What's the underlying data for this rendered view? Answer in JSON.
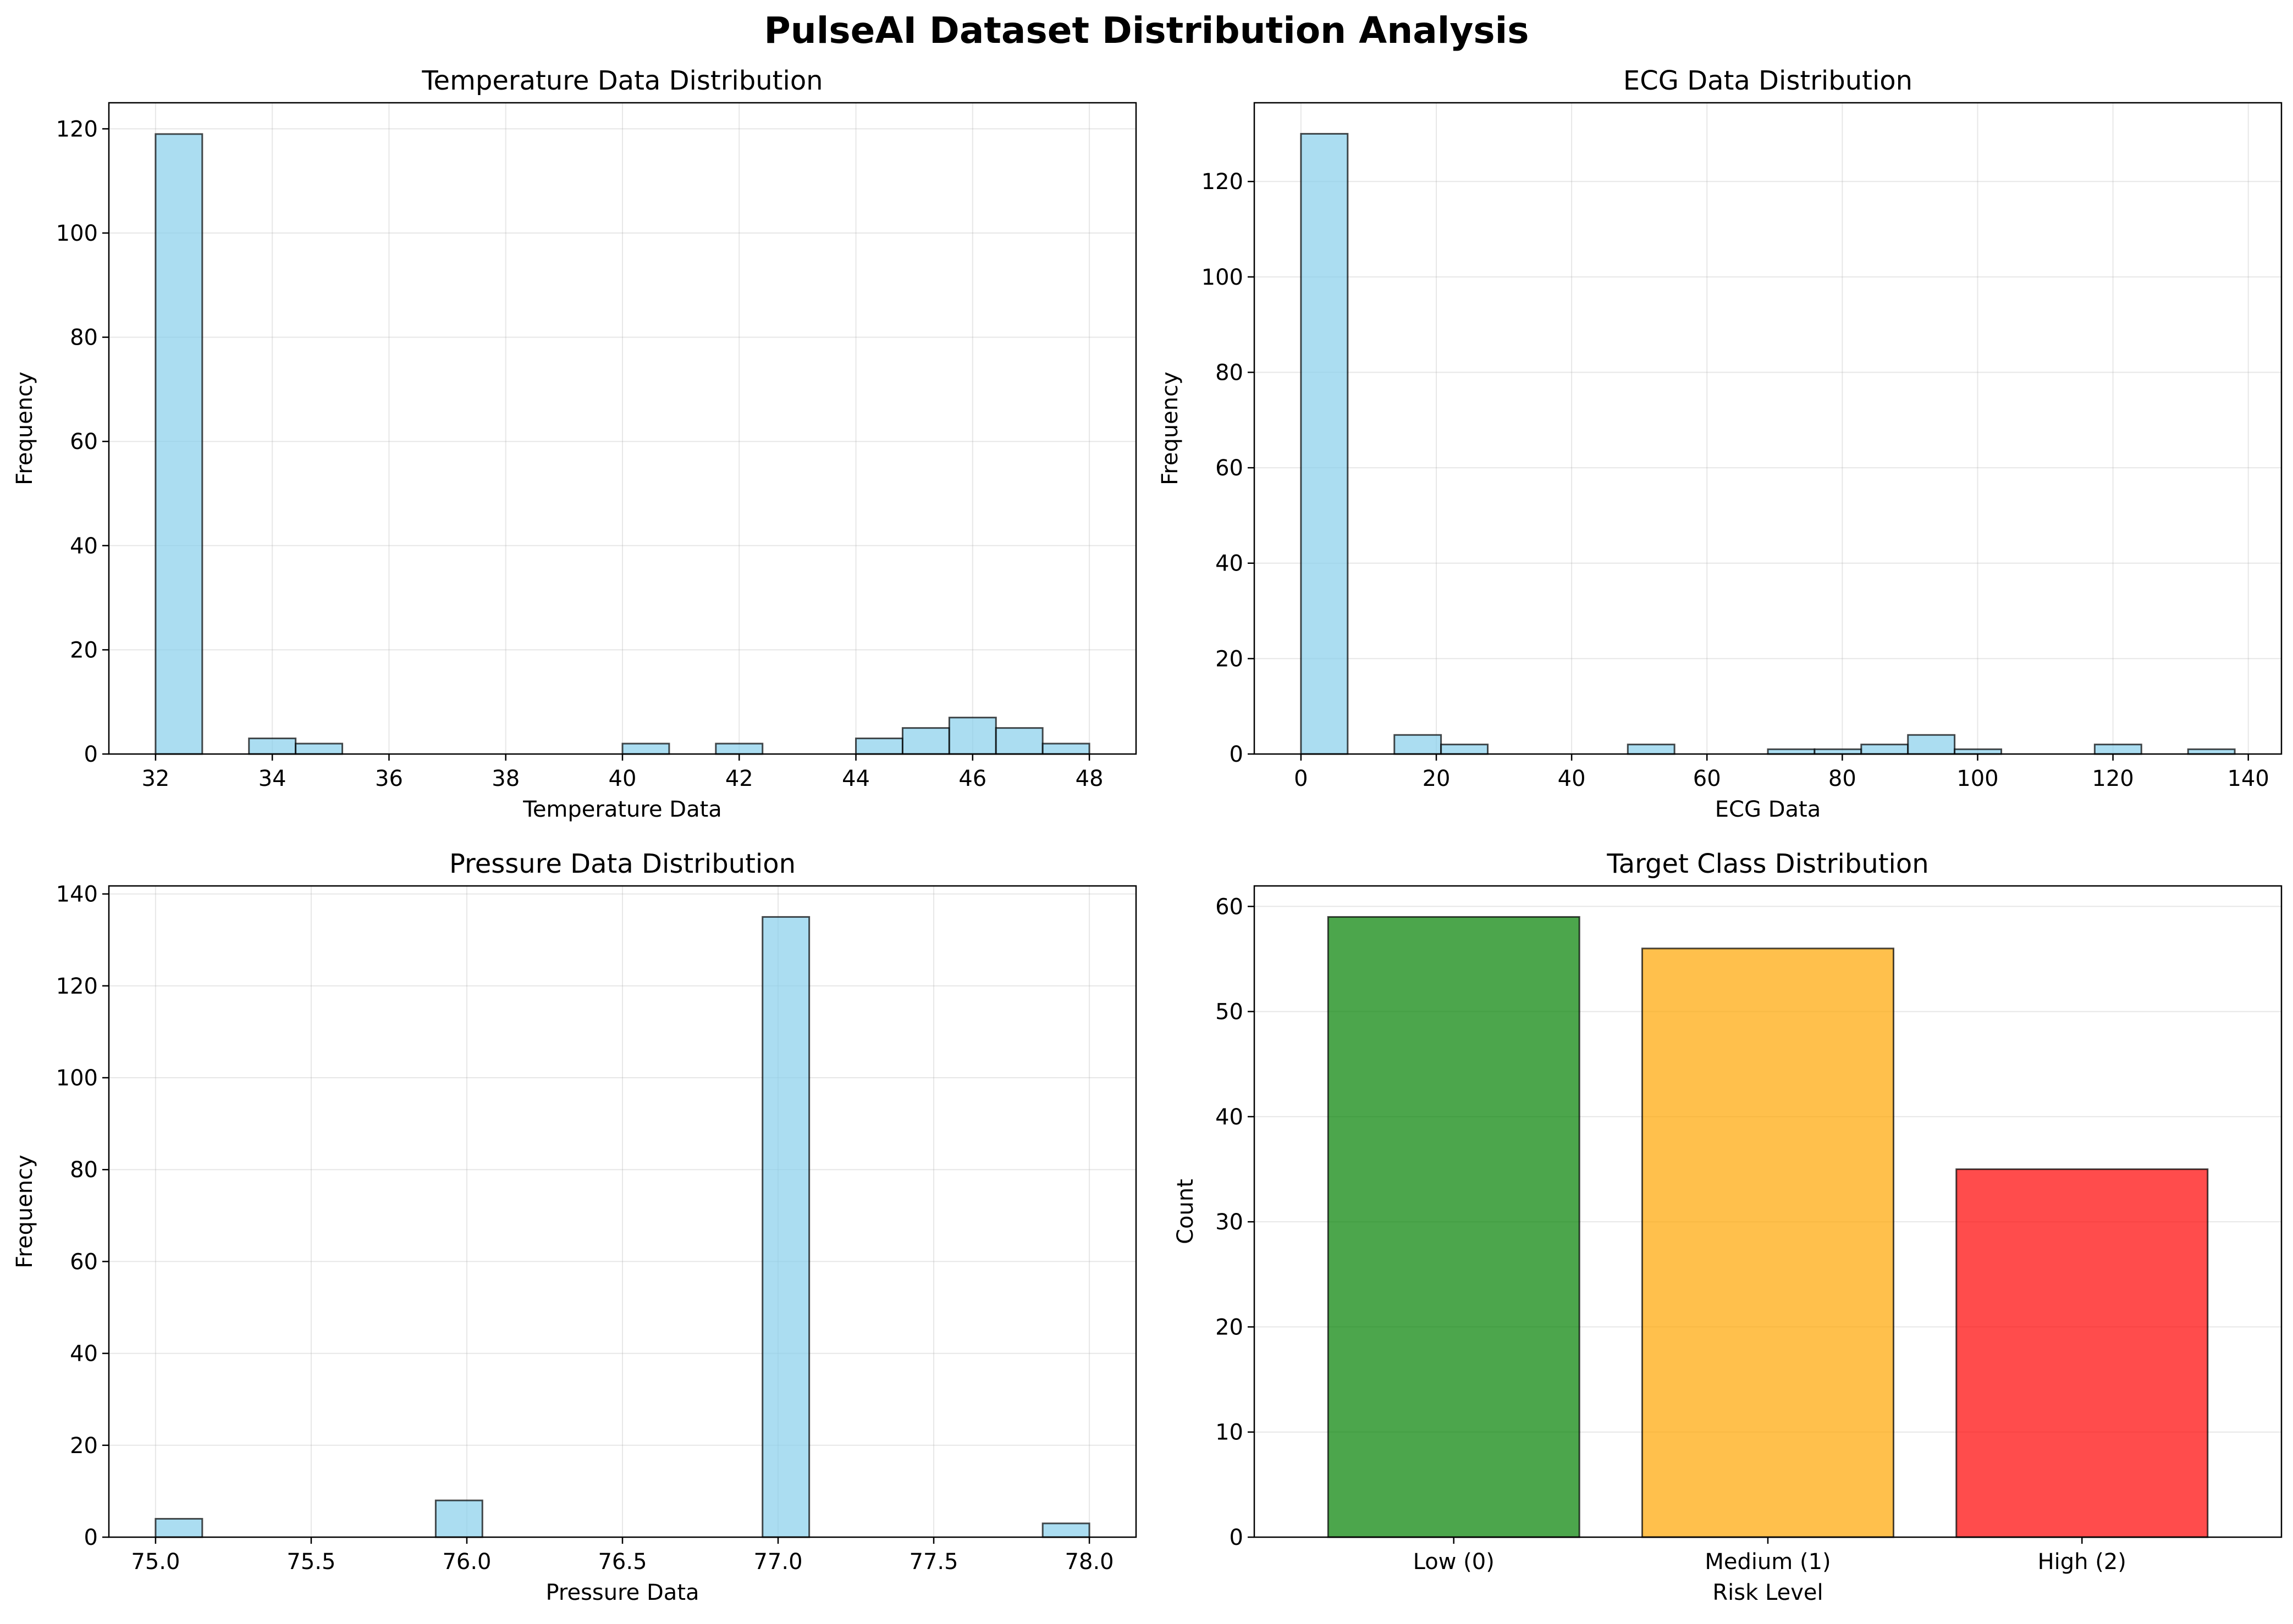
{
  "figure_title": "PulseAI Dataset Distribution Analysis",
  "chart_data": [
    {
      "type": "bar",
      "title": "Temperature Data Distribution",
      "xlabel": "Temperature Data",
      "ylabel": "Frequency",
      "xlim": [
        31.2,
        48.8
      ],
      "ylim": [
        0,
        125
      ],
      "xticks": [
        32,
        34,
        36,
        38,
        40,
        42,
        44,
        46,
        48
      ],
      "yticks": [
        0,
        20,
        40,
        60,
        80,
        100,
        120
      ],
      "bin_width": 0.8,
      "bins": [
        {
          "x": 32.0,
          "count": 119
        },
        {
          "x": 33.6,
          "count": 3
        },
        {
          "x": 34.4,
          "count": 2
        },
        {
          "x": 40.0,
          "count": 2
        },
        {
          "x": 41.6,
          "count": 2
        },
        {
          "x": 44.0,
          "count": 3
        },
        {
          "x": 44.8,
          "count": 5
        },
        {
          "x": 45.6,
          "count": 7
        },
        {
          "x": 46.4,
          "count": 5
        },
        {
          "x": 47.2,
          "count": 2
        }
      ],
      "bar_color": "#87CEEB",
      "grid": true
    },
    {
      "type": "bar",
      "title": "ECG Data Distribution",
      "xlabel": "ECG Data",
      "ylabel": "Frequency",
      "xlim": [
        -6.9,
        144.9
      ],
      "ylim": [
        0,
        136.5
      ],
      "xticks": [
        0,
        20,
        40,
        60,
        80,
        100,
        120,
        140
      ],
      "yticks": [
        0,
        20,
        40,
        60,
        80,
        100,
        120
      ],
      "bin_width": 6.9,
      "bins": [
        {
          "x": 0.0,
          "count": 130
        },
        {
          "x": 13.8,
          "count": 4
        },
        {
          "x": 20.7,
          "count": 2
        },
        {
          "x": 48.3,
          "count": 2
        },
        {
          "x": 69.0,
          "count": 1
        },
        {
          "x": 75.9,
          "count": 1
        },
        {
          "x": 82.8,
          "count": 2
        },
        {
          "x": 89.7,
          "count": 4
        },
        {
          "x": 96.6,
          "count": 1
        },
        {
          "x": 117.3,
          "count": 2
        },
        {
          "x": 131.1,
          "count": 1
        }
      ],
      "bar_color": "#87CEEB",
      "grid": true
    },
    {
      "type": "bar",
      "title": "Pressure Data Distribution",
      "xlabel": "Pressure Data",
      "ylabel": "Frequency",
      "xlim": [
        74.85,
        78.15
      ],
      "ylim": [
        0,
        141.75
      ],
      "xticks": [
        75.0,
        75.5,
        76.0,
        76.5,
        77.0,
        77.5,
        78.0
      ],
      "xtick_labels": [
        "75.0",
        "75.5",
        "76.0",
        "76.5",
        "77.0",
        "77.5",
        "78.0"
      ],
      "yticks": [
        0,
        20,
        40,
        60,
        80,
        100,
        120,
        140
      ],
      "bin_width": 0.15,
      "bins": [
        {
          "x": 75.0,
          "count": 4
        },
        {
          "x": 75.9,
          "count": 8
        },
        {
          "x": 76.95,
          "count": 135
        },
        {
          "x": 77.85,
          "count": 3
        }
      ],
      "bar_color": "#87CEEB",
      "grid": true
    },
    {
      "type": "bar",
      "title": "Target Class Distribution",
      "xlabel": "Risk Level",
      "ylabel": "Count",
      "ylim": [
        0,
        61.95
      ],
      "yticks": [
        0,
        10,
        20,
        30,
        40,
        50,
        60
      ],
      "categories": [
        "Low (0)",
        "Medium (1)",
        "High (2)"
      ],
      "values": [
        59,
        56,
        35
      ],
      "colors": [
        "#008000",
        "#FFA500",
        "#FF0000"
      ],
      "grid": true
    }
  ]
}
